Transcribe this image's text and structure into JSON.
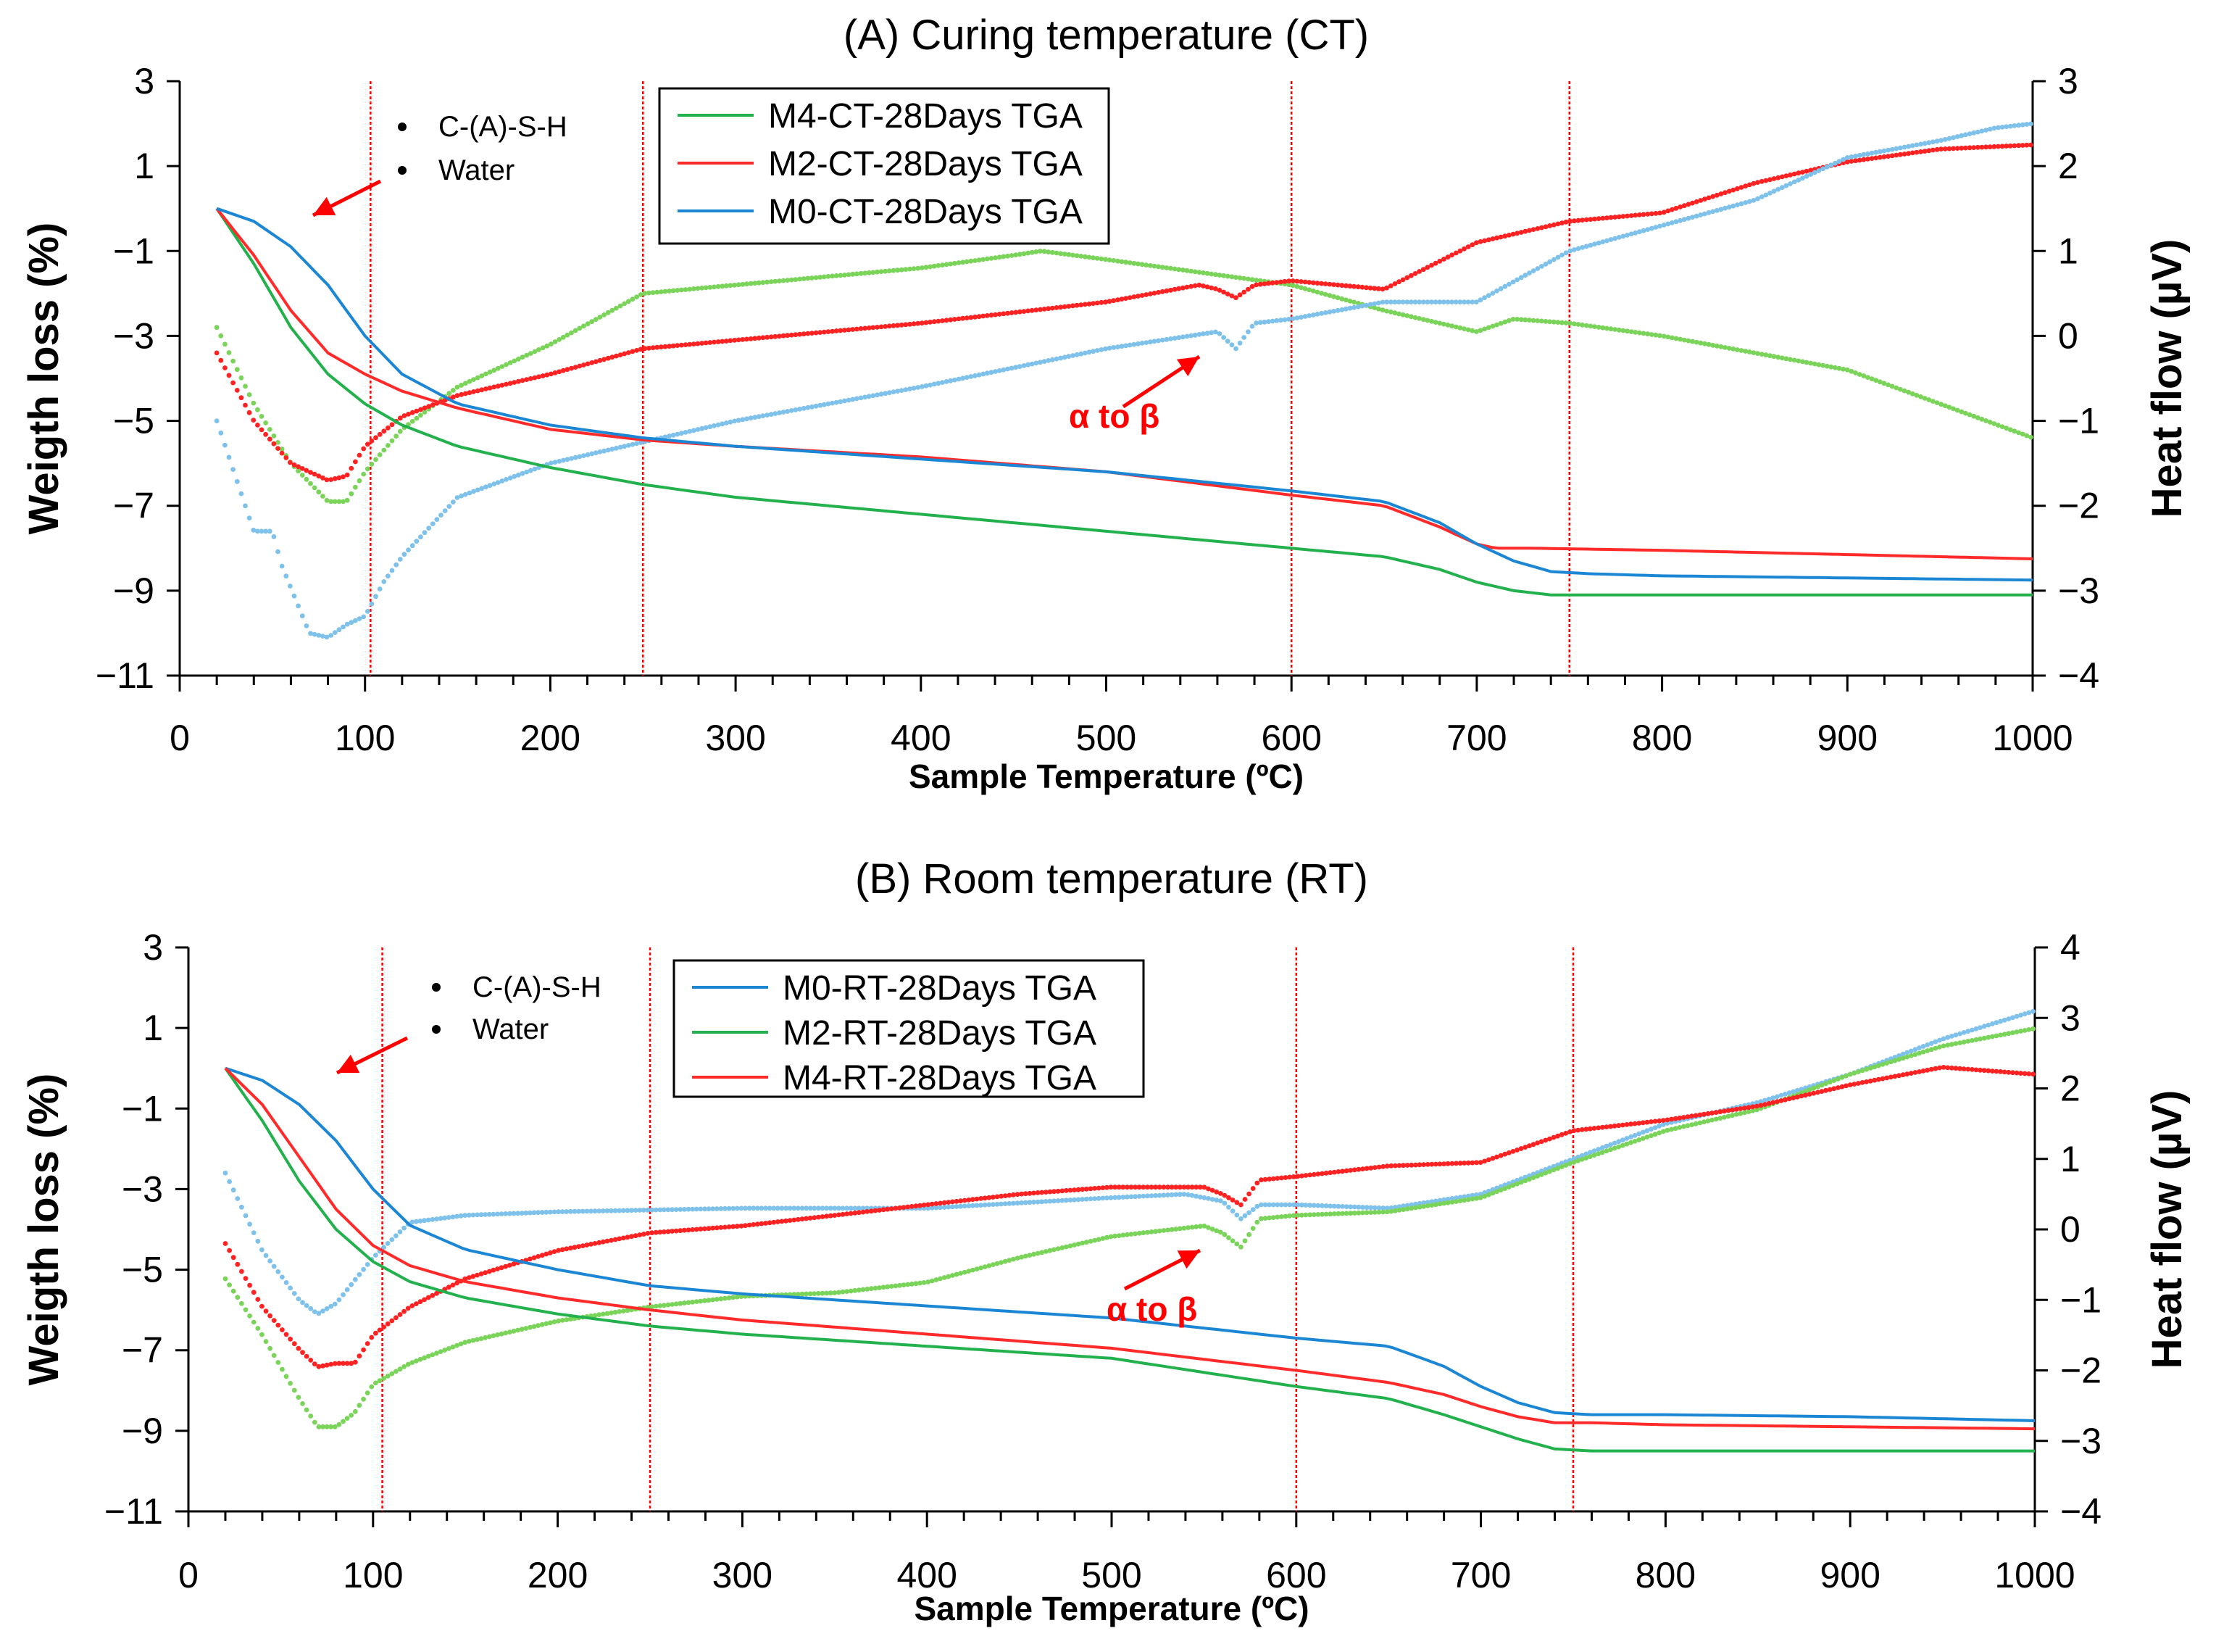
{
  "chart_data": [
    {
      "type": "line",
      "title": "(A) Curing temperature (CT)",
      "xlabel": "Sample Temperature (ºC)",
      "ylabel": "Weigth loss (%)",
      "ylabel_right": "Heat flow (µV)",
      "xlim": [
        0,
        1000
      ],
      "ylim": [
        -11,
        3
      ],
      "ylim_right": [
        -4,
        3
      ],
      "xticks": [
        "0",
        "100",
        "200",
        "300",
        "400",
        "500",
        "600",
        "700",
        "800",
        "900",
        "1000"
      ],
      "yticks": [
        "3",
        "1",
        "−1",
        "−3",
        "−5",
        "−7",
        "−9",
        "−11"
      ],
      "yticks_right": [
        "3",
        "2",
        "1",
        "0",
        "−1",
        "−2",
        "−3",
        "−4"
      ],
      "vlines": [
        103,
        250,
        600,
        750
      ],
      "legend": [
        "M4-CT-28Days TGA",
        "M2-CT-28Days TGA",
        "M0-CT-28Days TGA"
      ],
      "annotation_bullets": [
        "C-(A)-S-H",
        "Water"
      ],
      "transition_label": "α to β",
      "tga_series": [
        {
          "name": "M4-CT-28Days TGA",
          "color": "#22b14c",
          "x": [
            20,
            40,
            60,
            80,
            100,
            120,
            150,
            200,
            250,
            300,
            400,
            500,
            600,
            650,
            680,
            700,
            720,
            740,
            760,
            800,
            900,
            1000
          ],
          "y": [
            0,
            -1.3,
            -2.8,
            -3.9,
            -4.6,
            -5.1,
            -5.6,
            -6.1,
            -6.5,
            -6.8,
            -7.2,
            -7.6,
            -8.0,
            -8.2,
            -8.5,
            -8.8,
            -9.0,
            -9.1,
            -9.1,
            -9.1,
            -9.1,
            -9.1
          ]
        },
        {
          "name": "M2-CT-28Days TGA",
          "color": "#ff2a2a",
          "x": [
            20,
            40,
            60,
            80,
            100,
            120,
            150,
            200,
            250,
            300,
            400,
            500,
            600,
            650,
            680,
            700,
            710,
            730,
            800,
            900,
            1000
          ],
          "y": [
            0,
            -1.1,
            -2.4,
            -3.4,
            -3.9,
            -4.3,
            -4.7,
            -5.2,
            -5.45,
            -5.6,
            -5.85,
            -6.2,
            -6.75,
            -7.0,
            -7.5,
            -7.9,
            -8.0,
            -8.0,
            -8.05,
            -8.15,
            -8.25
          ]
        },
        {
          "name": "M0-CT-28Days TGA",
          "color": "#1b87d4",
          "x": [
            20,
            40,
            60,
            80,
            100,
            120,
            150,
            200,
            250,
            300,
            400,
            500,
            600,
            650,
            680,
            700,
            720,
            740,
            760,
            800,
            900,
            1000
          ],
          "y": [
            0,
            -0.3,
            -0.9,
            -1.8,
            -3.0,
            -3.9,
            -4.6,
            -5.1,
            -5.4,
            -5.6,
            -5.9,
            -6.2,
            -6.65,
            -6.9,
            -7.4,
            -7.9,
            -8.3,
            -8.55,
            -8.6,
            -8.65,
            -8.7,
            -8.75
          ]
        }
      ],
      "heat_series": [
        {
          "name": "M4-CT-28Days heat flow",
          "color": "#7bd45a",
          "x": [
            20,
            40,
            60,
            80,
            90,
            100,
            120,
            150,
            200,
            250,
            300,
            350,
            400,
            450,
            465,
            500,
            550,
            600,
            650,
            700,
            720,
            750,
            800,
            900,
            1000
          ],
          "y": [
            0.1,
            -0.8,
            -1.5,
            -1.95,
            -1.95,
            -1.6,
            -1.1,
            -0.6,
            -0.1,
            0.5,
            0.6,
            0.7,
            0.8,
            0.95,
            1.0,
            0.9,
            0.75,
            0.6,
            0.3,
            0.05,
            0.2,
            0.15,
            0.0,
            -0.4,
            -1.2
          ]
        },
        {
          "name": "M2-CT-28Days heat flow",
          "color": "#ff2222",
          "x": [
            20,
            40,
            60,
            80,
            90,
            100,
            120,
            150,
            200,
            250,
            300,
            400,
            500,
            550,
            560,
            570,
            580,
            600,
            650,
            700,
            750,
            800,
            850,
            900,
            950,
            1000
          ],
          "y": [
            -0.2,
            -1.0,
            -1.5,
            -1.7,
            -1.65,
            -1.3,
            -0.95,
            -0.7,
            -0.45,
            -0.15,
            -0.05,
            0.15,
            0.4,
            0.6,
            0.55,
            0.45,
            0.6,
            0.65,
            0.55,
            1.1,
            1.35,
            1.45,
            1.8,
            2.05,
            2.2,
            2.25
          ]
        },
        {
          "name": "M0-CT-28Days heat flow",
          "color": "#7ec1ea",
          "x": [
            20,
            40,
            50,
            55,
            70,
            80,
            90,
            100,
            110,
            120,
            150,
            200,
            300,
            400,
            500,
            560,
            570,
            580,
            600,
            650,
            700,
            750,
            800,
            850,
            900,
            950,
            980,
            1000
          ],
          "y": [
            -1.0,
            -2.3,
            -2.3,
            -2.7,
            -3.5,
            -3.55,
            -3.4,
            -3.3,
            -2.9,
            -2.6,
            -1.9,
            -1.5,
            -1.0,
            -0.6,
            -0.15,
            0.05,
            -0.15,
            0.15,
            0.2,
            0.4,
            0.4,
            1.0,
            1.3,
            1.6,
            2.1,
            2.3,
            2.45,
            2.5
          ]
        }
      ]
    },
    {
      "type": "line",
      "title": "(B) Room temperature (RT)",
      "xlabel": "Sample Temperature (ºC)",
      "ylabel": "Weigth loss (%)",
      "ylabel_right": "Heat flow (µV)",
      "xlim": [
        0,
        1000
      ],
      "ylim": [
        -11,
        3
      ],
      "ylim_right": [
        -4,
        4
      ],
      "xticks": [
        "0",
        "100",
        "200",
        "300",
        "400",
        "500",
        "600",
        "700",
        "800",
        "900",
        "1000"
      ],
      "yticks": [
        "3",
        "1",
        "−1",
        "−3",
        "−5",
        "−7",
        "−9",
        "−11"
      ],
      "yticks_right": [
        "4",
        "3",
        "2",
        "1",
        "0",
        "−1",
        "−2",
        "−3",
        "−4"
      ],
      "vlines": [
        105,
        250,
        600,
        750
      ],
      "legend": [
        "M0-RT-28Days TGA",
        "M2-RT-28Days TGA",
        "M4-RT-28Days TGA"
      ],
      "annotation_bullets": [
        "C-(A)-S-H",
        "Water"
      ],
      "transition_label": "α to β",
      "tga_series": [
        {
          "name": "M0-RT-28Days TGA",
          "color": "#1b87d4",
          "x": [
            20,
            40,
            60,
            80,
            100,
            120,
            150,
            200,
            250,
            300,
            400,
            500,
            600,
            650,
            680,
            700,
            720,
            740,
            760,
            800,
            900,
            1000
          ],
          "y": [
            0,
            -0.3,
            -0.9,
            -1.8,
            -3.0,
            -3.9,
            -4.5,
            -5.0,
            -5.4,
            -5.6,
            -5.9,
            -6.2,
            -6.7,
            -6.9,
            -7.4,
            -7.9,
            -8.3,
            -8.55,
            -8.6,
            -8.6,
            -8.65,
            -8.75
          ]
        },
        {
          "name": "M2-RT-28Days TGA",
          "color": "#22b14c",
          "x": [
            20,
            40,
            60,
            80,
            100,
            120,
            150,
            200,
            250,
            300,
            400,
            500,
            600,
            650,
            680,
            700,
            720,
            740,
            760,
            800,
            900,
            1000
          ],
          "y": [
            0,
            -1.3,
            -2.8,
            -4.0,
            -4.8,
            -5.3,
            -5.7,
            -6.1,
            -6.4,
            -6.6,
            -6.9,
            -7.2,
            -7.9,
            -8.2,
            -8.6,
            -8.9,
            -9.2,
            -9.45,
            -9.5,
            -9.5,
            -9.5,
            -9.5
          ]
        },
        {
          "name": "M4-RT-28Days TGA",
          "color": "#ff2a2a",
          "x": [
            20,
            40,
            60,
            80,
            100,
            120,
            150,
            200,
            250,
            300,
            400,
            500,
            600,
            650,
            680,
            700,
            720,
            740,
            760,
            800,
            900,
            1000
          ],
          "y": [
            0,
            -0.9,
            -2.2,
            -3.5,
            -4.4,
            -4.9,
            -5.3,
            -5.7,
            -6.0,
            -6.25,
            -6.6,
            -6.95,
            -7.5,
            -7.8,
            -8.1,
            -8.4,
            -8.65,
            -8.8,
            -8.8,
            -8.85,
            -8.9,
            -8.95
          ]
        }
      ],
      "heat_series": [
        {
          "name": "M0-RT-28Days heat flow",
          "color": "#7ec1ea",
          "x": [
            20,
            40,
            60,
            70,
            80,
            100,
            120,
            150,
            200,
            300,
            400,
            500,
            540,
            560,
            570,
            580,
            600,
            650,
            700,
            750,
            800,
            850,
            900,
            950,
            1000
          ],
          "y": [
            0.8,
            -0.3,
            -1.0,
            -1.2,
            -1.05,
            -0.4,
            0.1,
            0.2,
            0.25,
            0.3,
            0.3,
            0.45,
            0.5,
            0.4,
            0.15,
            0.35,
            0.35,
            0.3,
            0.5,
            1.0,
            1.5,
            1.8,
            2.2,
            2.7,
            3.1
          ]
        },
        {
          "name": "M2-RT-28Days heat flow",
          "color": "#7bd45a",
          "x": [
            20,
            40,
            60,
            70,
            80,
            90,
            100,
            120,
            150,
            200,
            250,
            300,
            350,
            400,
            450,
            500,
            550,
            560,
            570,
            580,
            600,
            650,
            700,
            750,
            800,
            850,
            900,
            950,
            1000
          ],
          "y": [
            -0.7,
            -1.5,
            -2.4,
            -2.8,
            -2.8,
            -2.6,
            -2.2,
            -1.9,
            -1.6,
            -1.3,
            -1.1,
            -0.95,
            -0.9,
            -0.75,
            -0.4,
            -0.1,
            0.05,
            -0.05,
            -0.25,
            0.15,
            0.2,
            0.25,
            0.45,
            0.95,
            1.4,
            1.7,
            2.2,
            2.6,
            2.85
          ]
        },
        {
          "name": "M4-RT-28Days heat flow",
          "color": "#ff2222",
          "x": [
            20,
            40,
            60,
            70,
            80,
            90,
            100,
            120,
            150,
            200,
            250,
            300,
            400,
            450,
            500,
            550,
            560,
            570,
            580,
            600,
            650,
            700,
            750,
            800,
            850,
            900,
            950,
            1000
          ],
          "y": [
            -0.2,
            -1.1,
            -1.7,
            -1.95,
            -1.9,
            -1.9,
            -1.5,
            -1.1,
            -0.7,
            -0.3,
            -0.05,
            0.05,
            0.35,
            0.5,
            0.6,
            0.6,
            0.5,
            0.35,
            0.7,
            0.75,
            0.9,
            0.95,
            1.4,
            1.55,
            1.75,
            2.05,
            2.3,
            2.2
          ]
        }
      ]
    }
  ]
}
